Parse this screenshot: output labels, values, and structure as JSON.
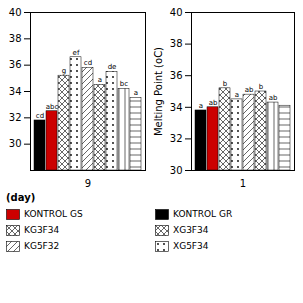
{
  "chart_data": [
    {
      "type": "bar",
      "xlabel": "(day)",
      "categories": [
        "9"
      ],
      "series": [
        {
          "color": "#000000",
          "values": [
            31.8
          ]
        },
        {
          "color": "#cc0000",
          "values": [
            32.5
          ]
        },
        {
          "color": "#ffffff",
          "line_style": "xx",
          "values": [
            35.2
          ]
        },
        {
          "color": "#ffffff",
          "line_style": "...",
          "values": [
            36.6
          ]
        },
        {
          "color": "#ffffff",
          "line_style": "///",
          "values": [
            35.8
          ]
        },
        {
          "color": "#ffffff",
          "line_style": "xx",
          "values": [
            34.5
          ]
        },
        {
          "color": "#ffffff",
          "line_style": "...",
          "values": [
            35.5
          ]
        },
        {
          "color": "#ffffff",
          "line_style": "|||",
          "values": [
            34.2
          ]
        },
        {
          "color": "#ffffff",
          "line_style": "---",
          "values": [
            33.5
          ]
        }
      ],
      "annotations": [
        "cd",
        "abc",
        "g",
        "ef",
        "cd",
        "a",
        "de",
        "bc",
        "a"
      ],
      "ylim": [
        28,
        40
      ],
      "yticks": [
        30,
        32,
        34,
        36,
        38,
        40
      ],
      "legend_items": [
        {
          "name": "KONTROL GS",
          "color": "#cc0000"
        },
        {
          "name": "KG3F34",
          "color": "#ffffff",
          "line_style": "xx"
        },
        {
          "name": "KG5F32",
          "color": "#ffffff",
          "line_style": "///"
        }
      ]
    },
    {
      "type": "bar",
      "ylabel": "Melting Point (oC)",
      "categories": [
        "1"
      ],
      "series": [
        {
          "color": "#000000",
          "values": [
            33.8
          ]
        },
        {
          "color": "#cc0000",
          "values": [
            34.0
          ]
        },
        {
          "color": "#ffffff",
          "line_style": "xx",
          "values": [
            35.2
          ]
        },
        {
          "color": "#ffffff",
          "line_style": "...",
          "values": [
            34.5
          ]
        },
        {
          "color": "#ffffff",
          "line_style": "///",
          "values": [
            34.8
          ]
        },
        {
          "color": "#ffffff",
          "line_style": "xx",
          "values": [
            35.0
          ]
        },
        {
          "color": "#ffffff",
          "line_style": "|||",
          "values": [
            34.3
          ]
        },
        {
          "color": "#ffffff",
          "line_style": "---",
          "values": [
            34.1
          ]
        }
      ],
      "annotations": [
        "a",
        "ab",
        "b",
        "a",
        "ab",
        "b",
        "ab",
        null
      ],
      "ylim": [
        30,
        40
      ],
      "yticks": [
        30,
        32,
        34,
        36,
        38,
        40
      ],
      "legend_items": [
        {
          "name": "KONTROL GR",
          "color": "#000000"
        },
        {
          "name": "XG3F34",
          "color": "#ffffff",
          "line_style": "xx"
        },
        {
          "name": "XG5F34",
          "color": "#ffffff",
          "line_style": "..."
        }
      ]
    }
  ]
}
